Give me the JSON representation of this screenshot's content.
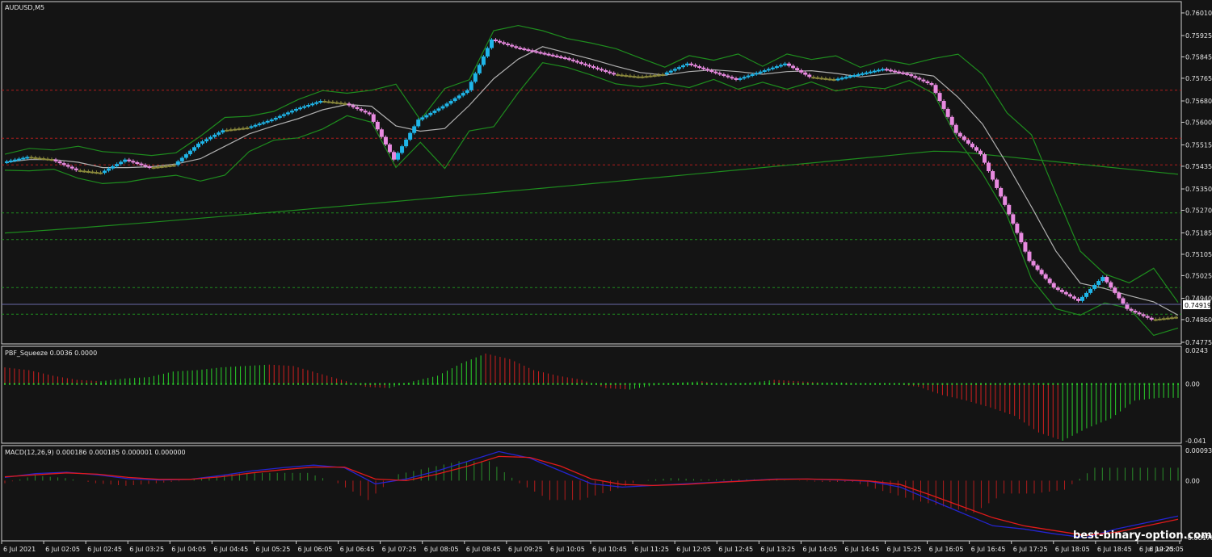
{
  "chart_data": [
    {
      "type": "candlestick",
      "title": "AUDUSD,M5",
      "price_axis": [
        "0.76010",
        "0.75925",
        "0.75845",
        "0.75765",
        "0.75680",
        "0.75600",
        "0.75515",
        "0.75435",
        "0.75350",
        "0.75270",
        "0.75185",
        "0.75105",
        "0.75025",
        "0.74940",
        "0.74860",
        "0.74775"
      ],
      "ylim": [
        0.74775,
        0.7601
      ],
      "current_price": "0.74919",
      "levels_red": [
        0.7572,
        0.7554,
        0.7544
      ],
      "levels_green": [
        0.7526,
        0.7516,
        0.7498,
        0.7488
      ],
      "series": [
        {
          "name": "close",
          "values": [
            0.7545,
            0.7547,
            0.7546,
            0.7542,
            0.7541,
            0.7546,
            0.7543,
            0.7544,
            0.7552,
            0.7557,
            0.7558,
            0.7561,
            0.7565,
            0.7568,
            0.7567,
            0.7563,
            0.7546,
            0.7561,
            0.7566,
            0.7572,
            0.7591,
            0.7588,
            0.7586,
            0.7584,
            0.7581,
            0.7578,
            0.7577,
            0.7578,
            0.7582,
            0.7579,
            0.7576,
            0.7579,
            0.7582,
            0.7577,
            0.7576,
            0.7578,
            0.758,
            0.7578,
            0.7574,
            0.7556,
            0.7548,
            0.7529,
            0.7508,
            0.7498,
            0.7493,
            0.7502,
            0.749,
            0.7486,
            0.7487
          ]
        }
      ]
    },
    {
      "type": "histogram",
      "title": "PBF_Squeeze 0.0036 0.0000",
      "axis": [
        "0.0243",
        "0.00",
        "-0.041"
      ],
      "ylim": [
        -0.041,
        0.0243
      ],
      "values": [
        0.012,
        0.01,
        0.006,
        0.003,
        0.002,
        0.004,
        0.005,
        0.009,
        0.01,
        0.012,
        0.013,
        0.014,
        0.013,
        0.008,
        0.003,
        -0.002,
        -0.003,
        0.002,
        0.006,
        0.015,
        0.022,
        0.018,
        0.01,
        0.006,
        0.003,
        -0.003,
        -0.004,
        -0.001,
        0.001,
        0.002,
        -0.001,
        0.001,
        0.003,
        0.002,
        0.001,
        0.001,
        0.0,
        0.0,
        -0.002,
        -0.008,
        -0.012,
        -0.017,
        -0.023,
        -0.035,
        -0.041,
        -0.032,
        -0.025,
        -0.012,
        -0.01
      ]
    },
    {
      "type": "line",
      "title": "MACD(12,26,9) 0.000186 0.000185 0.000001 0.000000",
      "axis": [
        "0.000936",
        "0.00",
        "-0.001767"
      ],
      "ylim": [
        -0.001767,
        0.000936
      ],
      "series": [
        {
          "name": "MACD",
          "values": [
            0.0001,
            0.00022,
            0.00026,
            0.00018,
            6e-05,
            2e-05,
            4e-05,
            0.00016,
            0.0003,
            0.0004,
            0.00048,
            0.0004,
            -0.0001,
            5e-05,
            0.0003,
            0.0006,
            0.0009,
            0.0007,
            0.0003,
            -0.0001,
            -0.0002,
            -0.00015,
            -0.0001,
            -5e-05,
            0.0,
            5e-05,
            5e-05,
            2e-05,
            -2e-05,
            -0.0002,
            -0.0006,
            -0.001,
            -0.0014,
            -0.0015,
            -0.00165,
            -0.00177,
            -0.0015,
            -0.0013,
            -0.0011
          ]
        },
        {
          "name": "Signal",
          "values": [
            0.00012,
            0.00018,
            0.00024,
            0.0002,
            0.0001,
            4e-05,
            4e-05,
            0.00012,
            0.00024,
            0.00034,
            0.00042,
            0.00042,
            5e-05,
            0.0,
            0.0002,
            0.00045,
            0.00075,
            0.00072,
            0.00045,
            5e-05,
            -0.00012,
            -0.00015,
            -0.00012,
            -6e-05,
            -1e-05,
            4e-05,
            5e-05,
            3e-05,
            -1e-05,
            -0.00012,
            -0.00045,
            -0.0008,
            -0.00115,
            -0.0014,
            -0.00155,
            -0.0017,
            -0.0016,
            -0.0014,
            -0.0012
          ]
        }
      ]
    }
  ],
  "time_axis": [
    "6 Jul 2021",
    "6 Jul 02:05",
    "6 Jul 02:45",
    "6 Jul 03:25",
    "6 Jul 04:05",
    "6 Jul 04:45",
    "6 Jul 05:25",
    "6 Jul 06:05",
    "6 Jul 06:45",
    "6 Jul 07:25",
    "6 Jul 08:05",
    "6 Jul 08:45",
    "6 Jul 09:25",
    "6 Jul 10:05",
    "6 Jul 10:45",
    "6 Jul 11:25",
    "6 Jul 12:05",
    "6 Jul 12:45",
    "6 Jul 13:25",
    "6 Jul 14:05",
    "6 Jul 14:45",
    "6 Jul 15:25",
    "6 Jul 16:05",
    "6 Jul 16:45",
    "6 Jul 17:25",
    "6 Jul 18:05",
    "6 Jul 18:45",
    "6 Jul 19:25",
    "6 Jul 20:05"
  ],
  "watermark": "best-binary-option.com",
  "colors": {
    "bull": "#1fb5e8",
    "bear": "#e88ae0",
    "doji": "#8c8a3c",
    "bands": "#1e8c1e",
    "ma": "#b0b0b0",
    "macd": "#2424d0",
    "signal": "#e01a1a",
    "up_hist": "#2ad12a",
    "down_hist": "#d12020"
  }
}
